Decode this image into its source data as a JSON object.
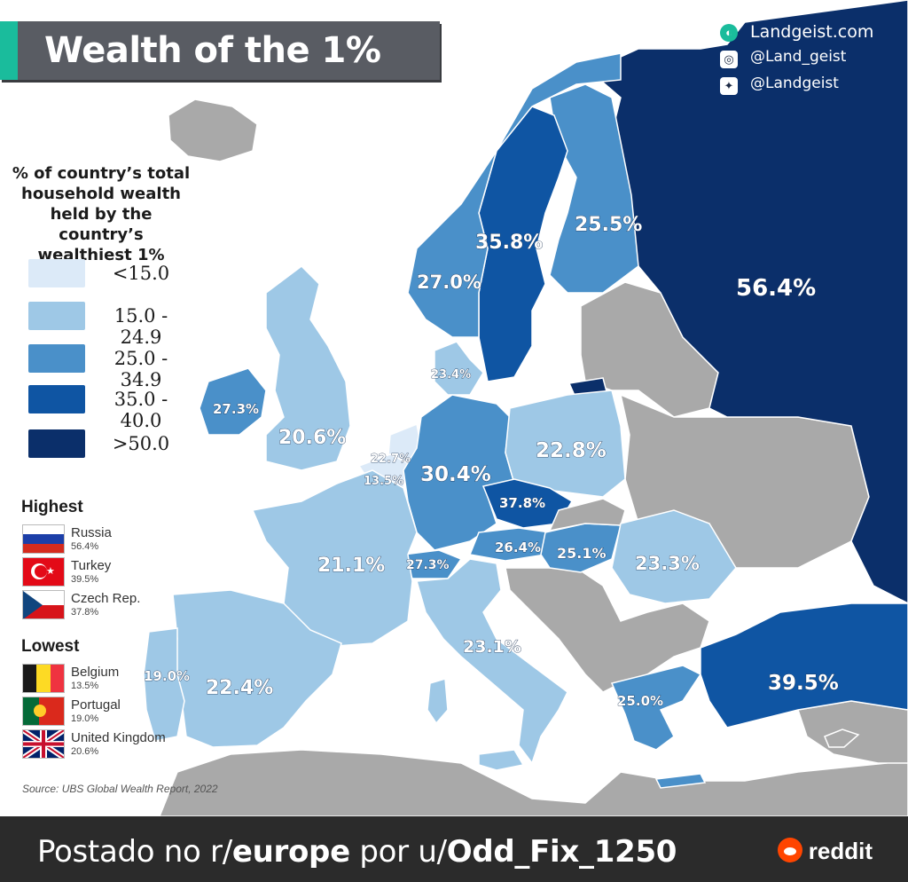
{
  "title": "Wealth of the 1%",
  "brand": {
    "site": "Landgeist.com",
    "instagram": "@Land_geist",
    "twitter": "@Landgeist",
    "site_icon": "landgeist-logo-icon",
    "instagram_icon": "instagram-icon",
    "twitter_icon": "twitter-icon"
  },
  "legend": {
    "title_lines": [
      "% of country’s total",
      "household wealth",
      "held by the country’s",
      "wealthiest 1%"
    ],
    "classes": [
      {
        "label": "<15.0",
        "color": "#dceaf8"
      },
      {
        "label": "15.0 - 24.9",
        "color": "#9ec8e6"
      },
      {
        "label": "25.0 - 34.9",
        "color": "#4a90c9"
      },
      {
        "label": "35.0 - 40.0",
        "color": "#0f55a3"
      },
      {
        "label": ">50.0",
        "color": "#0b2f6a"
      }
    ]
  },
  "highest": {
    "heading": "Highest",
    "items": [
      {
        "country": "Russia",
        "value": "56.4%"
      },
      {
        "country": "Turkey",
        "value": "39.5%"
      },
      {
        "country": "Czech Rep.",
        "value": "37.8%"
      }
    ]
  },
  "lowest": {
    "heading": "Lowest",
    "items": [
      {
        "country": "Belgium",
        "value": "13.5%"
      },
      {
        "country": "Portugal",
        "value": "19.0%"
      },
      {
        "country": "United Kingdom",
        "value": "20.6%"
      }
    ]
  },
  "map_labels": {
    "russia": "56.4%",
    "finland": "25.5%",
    "sweden": "35.8%",
    "norway": "27.0%",
    "denmark": "23.4%",
    "ireland": "27.3%",
    "uk": "20.6%",
    "netherlands": "22.7%",
    "belgium": "13.5%",
    "germany": "30.4%",
    "poland": "22.8%",
    "czech": "37.8%",
    "austria": "26.4%",
    "hungary": "25.1%",
    "romania": "23.3%",
    "switzerland": "27.3%",
    "france": "21.1%",
    "italy": "23.1%",
    "spain": "22.4%",
    "portugal": "19.0%",
    "greece": "25.0%",
    "turkey": "39.5%"
  },
  "colors": {
    "sea": "#ffffff",
    "no_data": "#a9a9a9",
    "russia": "#0b2f6a",
    "turkey": "#0f55a3",
    "czech": "#0f55a3",
    "sweden": "#0f55a3",
    "mid": "#4a90c9",
    "light": "#9ec8e6",
    "lightest": "#dceaf8"
  },
  "source": "Source: UBS Global Wealth Report, 2022",
  "footer": {
    "prefix": "Postado no r/",
    "subreddit": "europe",
    "middle": " por u/",
    "user": "Odd_Fix_1250",
    "reddit_label": "reddit",
    "reddit_icon": "reddit-alien-icon"
  }
}
